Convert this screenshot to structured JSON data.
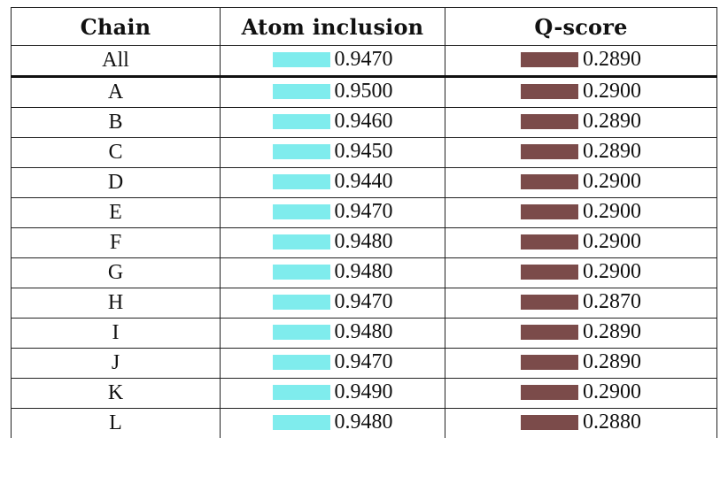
{
  "table": {
    "headers": [
      "Chain",
      "Atom inclusion",
      "Q-score"
    ],
    "colors": {
      "atom_inclusion_bar": "#7feced",
      "q_score_bar": "#7b4b4a"
    },
    "rows": [
      {
        "chain": "All",
        "atom_inclusion": "0.9470",
        "q_score": "0.2890"
      },
      {
        "chain": "A",
        "atom_inclusion": "0.9500",
        "q_score": "0.2900"
      },
      {
        "chain": "B",
        "atom_inclusion": "0.9460",
        "q_score": "0.2890"
      },
      {
        "chain": "C",
        "atom_inclusion": "0.9450",
        "q_score": "0.2890"
      },
      {
        "chain": "D",
        "atom_inclusion": "0.9440",
        "q_score": "0.2900"
      },
      {
        "chain": "E",
        "atom_inclusion": "0.9470",
        "q_score": "0.2900"
      },
      {
        "chain": "F",
        "atom_inclusion": "0.9480",
        "q_score": "0.2900"
      },
      {
        "chain": "G",
        "atom_inclusion": "0.9480",
        "q_score": "0.2900"
      },
      {
        "chain": "H",
        "atom_inclusion": "0.9470",
        "q_score": "0.2870"
      },
      {
        "chain": "I",
        "atom_inclusion": "0.9480",
        "q_score": "0.2890"
      },
      {
        "chain": "J",
        "atom_inclusion": "0.9470",
        "q_score": "0.2890"
      },
      {
        "chain": "K",
        "atom_inclusion": "0.9490",
        "q_score": "0.2900"
      },
      {
        "chain": "L",
        "atom_inclusion": "0.9480",
        "q_score": "0.2880"
      }
    ]
  }
}
